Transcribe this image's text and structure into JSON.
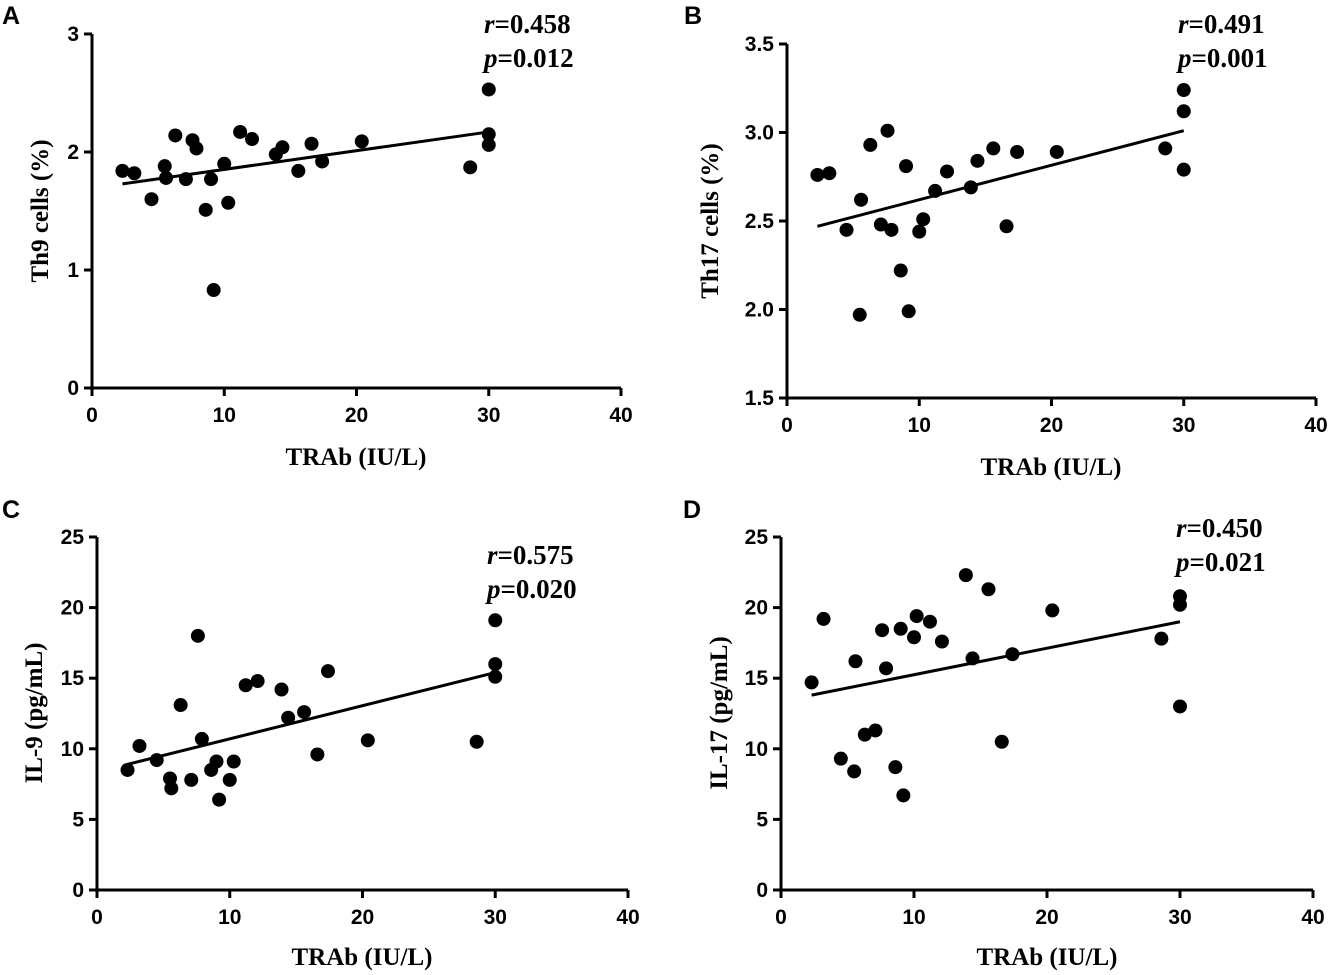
{
  "chart_data": [
    {
      "type": "scatter",
      "panel_label": "A",
      "xlabel": "TRAb (IU/L)",
      "ylabel": "Th9 cells (%)",
      "xlim": [
        0,
        40
      ],
      "ylim": [
        0,
        3
      ],
      "x_ticks": [
        "0",
        "10",
        "20",
        "30",
        "40"
      ],
      "y_ticks": [
        "0",
        "1",
        "2",
        "3"
      ],
      "stats": {
        "r_symbol": "r",
        "r_value": "=0.458",
        "p_symbol": "p",
        "p_value": "=0.012"
      },
      "trendline": {
        "x": [
          2.3,
          30
        ],
        "y": [
          1.73,
          2.17
        ]
      },
      "points": {
        "x": [
          2.3,
          3.2,
          4.5,
          5.5,
          5.6,
          6.3,
          7.1,
          7.6,
          7.9,
          8.6,
          9.0,
          9.2,
          10.0,
          10.3,
          11.2,
          12.1,
          13.9,
          14.4,
          15.6,
          16.6,
          17.4,
          20.4,
          28.6,
          30.0,
          30.0,
          30.0
        ],
        "y": [
          1.84,
          1.82,
          1.6,
          1.88,
          1.78,
          2.14,
          1.77,
          2.1,
          2.03,
          1.51,
          1.77,
          0.83,
          1.9,
          1.57,
          2.17,
          2.11,
          1.98,
          2.04,
          1.84,
          2.07,
          1.92,
          2.09,
          1.87,
          2.53,
          2.15,
          2.06
        ]
      }
    },
    {
      "type": "scatter",
      "panel_label": "B",
      "xlabel": "TRAb (IU/L)",
      "ylabel": "Th17 cells (%)",
      "xlim": [
        0,
        40
      ],
      "ylim": [
        1.5,
        3.5
      ],
      "x_ticks": [
        "0",
        "10",
        "20",
        "30",
        "40"
      ],
      "y_ticks": [
        "1.5",
        "2.0",
        "2.5",
        "3.0",
        "3.5"
      ],
      "stats": {
        "r_symbol": "r",
        "r_value": "=0.491",
        "p_symbol": "p",
        "p_value": "=0.001"
      },
      "trendline": {
        "x": [
          2.3,
          30
        ],
        "y": [
          2.47,
          3.01
        ]
      },
      "points": {
        "x": [
          2.3,
          3.2,
          4.5,
          5.5,
          5.6,
          6.3,
          7.1,
          7.6,
          7.9,
          8.6,
          9.0,
          9.2,
          10.0,
          10.3,
          11.2,
          12.1,
          13.9,
          14.4,
          15.6,
          16.6,
          17.4,
          20.4,
          28.6,
          30.0,
          30.0,
          30.0
        ],
        "y": [
          2.76,
          2.77,
          2.45,
          1.97,
          2.62,
          2.93,
          2.48,
          3.01,
          2.45,
          2.22,
          2.81,
          1.99,
          2.44,
          2.51,
          2.67,
          2.78,
          2.69,
          2.84,
          2.91,
          2.47,
          2.89,
          2.89,
          2.91,
          3.24,
          3.12,
          2.79
        ]
      }
    },
    {
      "type": "scatter",
      "panel_label": "C",
      "xlabel": "TRAb (IU/L)",
      "ylabel": "IL-9 (pg/mL)",
      "xlim": [
        0,
        40
      ],
      "ylim": [
        0,
        25
      ],
      "x_ticks": [
        "0",
        "10",
        "20",
        "30",
        "40"
      ],
      "y_ticks": [
        "0",
        "5",
        "10",
        "15",
        "20",
        "25"
      ],
      "stats": {
        "r_symbol": "r",
        "r_value": "=0.575",
        "p_symbol": "p",
        "p_value": "=0.020"
      },
      "trendline": {
        "x": [
          2.3,
          30
        ],
        "y": [
          8.9,
          15.4
        ]
      },
      "points": {
        "x": [
          2.3,
          3.2,
          4.5,
          5.5,
          5.6,
          6.3,
          7.1,
          7.6,
          7.9,
          8.6,
          9.0,
          9.2,
          10.0,
          10.3,
          11.2,
          12.1,
          13.9,
          14.4,
          15.6,
          16.6,
          17.4,
          20.4,
          28.6,
          30.0,
          30.0,
          30.0
        ],
        "y": [
          8.5,
          10.2,
          9.2,
          7.9,
          7.2,
          13.1,
          7.8,
          18.0,
          10.7,
          8.5,
          9.1,
          6.4,
          7.8,
          9.1,
          14.5,
          14.8,
          14.2,
          12.2,
          12.6,
          9.6,
          15.5,
          10.6,
          10.5,
          19.1,
          16.0,
          15.1
        ]
      }
    },
    {
      "type": "scatter",
      "panel_label": "D",
      "xlabel": "TRAb (IU/L)",
      "ylabel": "IL-17 (pg/mL)",
      "xlim": [
        0,
        40
      ],
      "ylim": [
        0,
        25
      ],
      "x_ticks": [
        "0",
        "10",
        "20",
        "30",
        "40"
      ],
      "y_ticks": [
        "0",
        "5",
        "10",
        "15",
        "20",
        "25"
      ],
      "stats": {
        "r_symbol": "r",
        "r_value": "=0.450",
        "p_symbol": "p",
        "p_value": "=0.021"
      },
      "trendline": {
        "x": [
          2.3,
          30
        ],
        "y": [
          13.8,
          19.0
        ]
      },
      "points": {
        "x": [
          2.3,
          3.2,
          4.5,
          5.5,
          5.6,
          6.3,
          7.1,
          7.6,
          7.9,
          8.6,
          9.0,
          9.2,
          10.0,
          10.2,
          11.2,
          12.1,
          13.9,
          14.4,
          15.6,
          16.6,
          17.4,
          20.4,
          28.6,
          30.0,
          30.0,
          30.0
        ],
        "y": [
          14.7,
          19.2,
          9.3,
          8.4,
          16.2,
          11.0,
          11.3,
          18.4,
          15.7,
          8.7,
          18.5,
          6.7,
          17.9,
          19.4,
          19.0,
          17.6,
          22.3,
          16.4,
          21.3,
          10.5,
          16.7,
          19.8,
          17.8,
          20.8,
          20.2,
          13.0
        ]
      }
    }
  ]
}
